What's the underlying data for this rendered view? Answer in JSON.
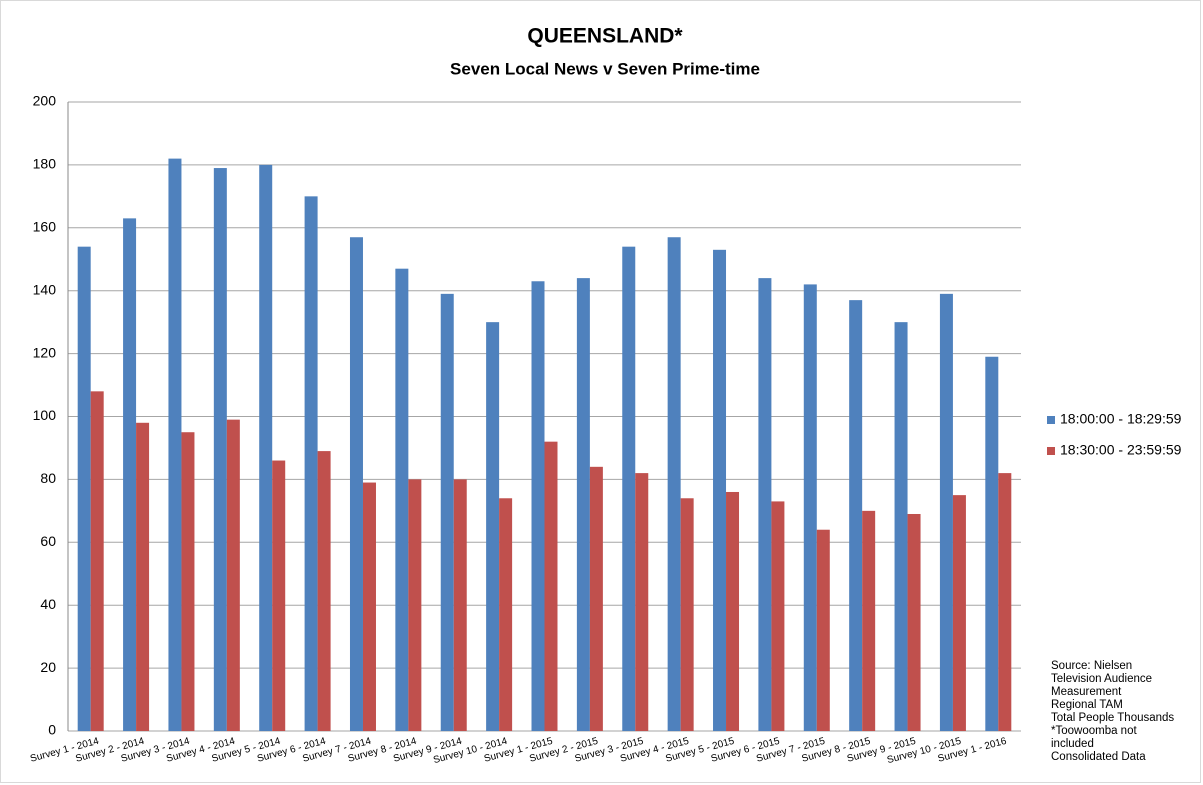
{
  "chart_data": {
    "type": "bar",
    "title": "QUEENSLAND*",
    "subtitle": "Seven Local News v Seven Prime-time",
    "categories": [
      "Survey 1 - 2014",
      "Survey 2 - 2014",
      "Survey 3 - 2014",
      "Survey 4 - 2014",
      "Survey 5 - 2014",
      "Survey 6 - 2014",
      "Survey 7 - 2014",
      "Survey 8 - 2014",
      "Survey 9 - 2014",
      "Survey 10 - 2014",
      "Survey 1 - 2015",
      "Survey 2 - 2015",
      "Survey 3 - 2015",
      "Survey 4 - 2015",
      "Survey 5 - 2015",
      "Survey 6 - 2015",
      "Survey 7 - 2015",
      "Survey 8 - 2015",
      "Survey 9 - 2015",
      "Survey 10 - 2015",
      "Survey 1 - 2016"
    ],
    "series": [
      {
        "name": "18:00:00 - 18:29:59",
        "color": "#4f81bd",
        "values": [
          154,
          163,
          182,
          179,
          180,
          170,
          157,
          147,
          139,
          130,
          143,
          144,
          154,
          157,
          153,
          144,
          142,
          137,
          130,
          139,
          119
        ]
      },
      {
        "name": "18:30:00 - 23:59:59",
        "color": "#c0504d",
        "values": [
          108,
          98,
          95,
          99,
          86,
          89,
          79,
          80,
          80,
          74,
          92,
          84,
          82,
          74,
          76,
          73,
          64,
          70,
          69,
          75,
          82
        ]
      }
    ],
    "ylim": [
      0,
      200
    ],
    "yticks": [
      0,
      20,
      40,
      60,
      80,
      100,
      120,
      140,
      160,
      180,
      200
    ],
    "grid": true,
    "legend": "right",
    "notes": [
      "Source:  Nielsen",
      "Television Audience",
      "Measurement",
      "Regional TAM",
      "Total People Thousands",
      "*Toowoomba not",
      "included",
      "Consolidated Data"
    ]
  }
}
